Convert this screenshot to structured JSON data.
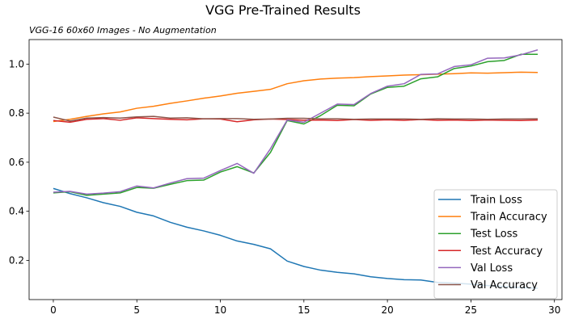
{
  "chart_data": {
    "type": "line",
    "title": "VGG Pre-Trained Results",
    "subtitle": "VGG-16 60x60 Images - No Augmentation",
    "xlabel": "",
    "ylabel": "",
    "xlim": [
      -1.45,
      30.45
    ],
    "ylim": [
      0.04,
      1.1
    ],
    "xticks": [
      0,
      5,
      10,
      15,
      20,
      25,
      30
    ],
    "yticks": [
      0.2,
      0.4,
      0.6,
      0.8,
      1.0
    ],
    "ytick_labels": [
      "0.2",
      "0.4",
      "0.6",
      "0.8",
      "1.0"
    ],
    "grid": false,
    "legend_position": "lower-right",
    "x": [
      0,
      1,
      2,
      3,
      4,
      5,
      6,
      7,
      8,
      9,
      10,
      11,
      12,
      13,
      14,
      15,
      16,
      17,
      18,
      19,
      20,
      21,
      22,
      23,
      24,
      25,
      26,
      27,
      28,
      29
    ],
    "series": [
      {
        "name": "Train Loss",
        "color": "#1f77b4",
        "values": [
          0.493,
          0.472,
          0.455,
          0.435,
          0.42,
          0.396,
          0.381,
          0.355,
          0.335,
          0.32,
          0.302,
          0.279,
          0.265,
          0.247,
          0.197,
          0.175,
          0.16,
          0.151,
          0.145,
          0.133,
          0.126,
          0.121,
          0.12,
          0.11,
          0.107,
          0.103,
          0.097,
          0.093,
          0.089,
          0.086
        ]
      },
      {
        "name": "Train Accuracy",
        "color": "#ff7f0e",
        "values": [
          0.766,
          0.775,
          0.787,
          0.797,
          0.805,
          0.82,
          0.828,
          0.84,
          0.85,
          0.861,
          0.87,
          0.881,
          0.889,
          0.897,
          0.92,
          0.932,
          0.939,
          0.943,
          0.945,
          0.949,
          0.952,
          0.955,
          0.957,
          0.959,
          0.961,
          0.964,
          0.963,
          0.965,
          0.967,
          0.966
        ]
      },
      {
        "name": "Test Loss",
        "color": "#2ca02c",
        "values": [
          0.475,
          0.48,
          0.465,
          0.47,
          0.475,
          0.497,
          0.494,
          0.51,
          0.525,
          0.527,
          0.56,
          0.582,
          0.556,
          0.64,
          0.77,
          0.756,
          0.79,
          0.832,
          0.83,
          0.878,
          0.905,
          0.91,
          0.94,
          0.948,
          0.982,
          0.992,
          1.01,
          1.015,
          1.04,
          1.04
        ]
      },
      {
        "name": "Test Accuracy",
        "color": "#d62728",
        "values": [
          0.77,
          0.763,
          0.775,
          0.778,
          0.771,
          0.781,
          0.778,
          0.775,
          0.773,
          0.777,
          0.776,
          0.765,
          0.773,
          0.776,
          0.774,
          0.771,
          0.772,
          0.77,
          0.774,
          0.771,
          0.773,
          0.771,
          0.774,
          0.771,
          0.772,
          0.77,
          0.772,
          0.771,
          0.77,
          0.772
        ]
      },
      {
        "name": "Val Loss",
        "color": "#9467bd",
        "values": [
          0.478,
          0.481,
          0.47,
          0.474,
          0.48,
          0.503,
          0.495,
          0.515,
          0.533,
          0.535,
          0.566,
          0.595,
          0.555,
          0.655,
          0.772,
          0.763,
          0.8,
          0.837,
          0.835,
          0.88,
          0.91,
          0.92,
          0.958,
          0.96,
          0.99,
          0.997,
          1.024,
          1.025,
          1.038,
          1.058
        ]
      },
      {
        "name": "Val Accuracy",
        "color": "#8c564b",
        "values": [
          0.784,
          0.768,
          0.78,
          0.782,
          0.78,
          0.785,
          0.787,
          0.78,
          0.781,
          0.777,
          0.778,
          0.778,
          0.775,
          0.776,
          0.779,
          0.779,
          0.777,
          0.777,
          0.775,
          0.776,
          0.776,
          0.776,
          0.775,
          0.777,
          0.776,
          0.776,
          0.775,
          0.776,
          0.776,
          0.777
        ]
      }
    ]
  }
}
